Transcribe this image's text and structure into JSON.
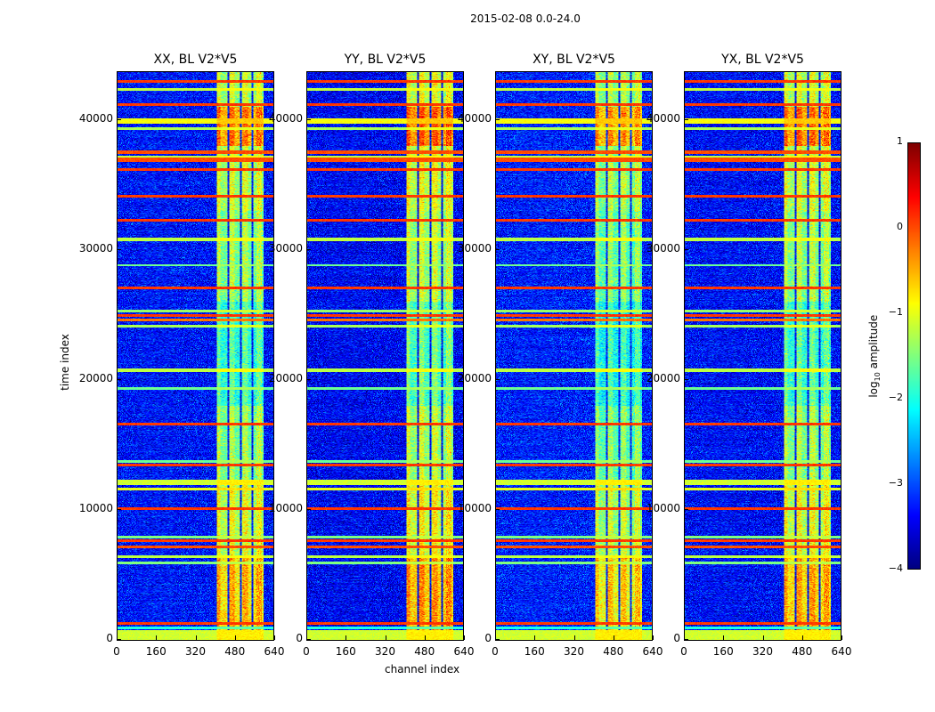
{
  "chart_data": {
    "type": "heatmap",
    "title": "2015-02-08 0.0-24.0",
    "xlabel": "channel index",
    "ylabel": "time index",
    "xlim": [
      0,
      640
    ],
    "ylim": [
      0,
      43700
    ],
    "xticks": [
      "0",
      "160",
      "320",
      "480",
      "640"
    ],
    "yticks": [
      "0",
      "10000",
      "20000",
      "30000",
      "40000"
    ],
    "panels": [
      {
        "title": "XX, BL V2*V5",
        "background": -3.3,
        "band_offset": 0.0
      },
      {
        "title": "YY, BL V2*V5",
        "background": -3.4,
        "band_offset": 0.15
      },
      {
        "title": "XY, BL V2*V5",
        "background": -3.25,
        "band_offset": -0.15
      },
      {
        "title": "YX, BL V2*V5",
        "background": -3.35,
        "band_offset": 0.05
      }
    ],
    "rfi_rows": [
      {
        "t": 42950,
        "w": 120,
        "level": 0.1
      },
      {
        "t": 42330,
        "w": 150,
        "level": -1.2
      },
      {
        "t": 41160,
        "w": 120,
        "level": 0.1
      },
      {
        "t": 39900,
        "w": 300,
        "level": -0.9
      },
      {
        "t": 39300,
        "w": 150,
        "level": -1.3
      },
      {
        "t": 37500,
        "w": 260,
        "level": 0.0
      },
      {
        "t": 37100,
        "w": 220,
        "level": -1.2
      },
      {
        "t": 36900,
        "w": 260,
        "level": 0.0
      },
      {
        "t": 36160,
        "w": 120,
        "level": 0.1
      },
      {
        "t": 34100,
        "w": 120,
        "level": 0.1
      },
      {
        "t": 32260,
        "w": 140,
        "level": 0.1
      },
      {
        "t": 30800,
        "w": 200,
        "level": -1.2
      },
      {
        "t": 28800,
        "w": 120,
        "level": -1.6
      },
      {
        "t": 27050,
        "w": 130,
        "level": 0.1
      },
      {
        "t": 25300,
        "w": 150,
        "level": -1.4
      },
      {
        "t": 24900,
        "w": 130,
        "level": 0.1
      },
      {
        "t": 24600,
        "w": 130,
        "level": -0.2
      },
      {
        "t": 24100,
        "w": 120,
        "level": -1.3
      },
      {
        "t": 20700,
        "w": 180,
        "level": -1.2
      },
      {
        "t": 19300,
        "w": 120,
        "level": -1.6
      },
      {
        "t": 16575,
        "w": 120,
        "level": 0.1
      },
      {
        "t": 13700,
        "w": 120,
        "level": -1.6
      },
      {
        "t": 13420,
        "w": 120,
        "level": 0.1
      },
      {
        "t": 12100,
        "w": 300,
        "level": -1.1
      },
      {
        "t": 11600,
        "w": 130,
        "level": -1.0
      },
      {
        "t": 10070,
        "w": 120,
        "level": 0.1
      },
      {
        "t": 7900,
        "w": 120,
        "level": -1.5
      },
      {
        "t": 7600,
        "w": 120,
        "level": 0.1
      },
      {
        "t": 7100,
        "w": 120,
        "level": 0.0
      },
      {
        "t": 6370,
        "w": 180,
        "level": -1.2
      },
      {
        "t": 5900,
        "w": 120,
        "level": -1.5
      },
      {
        "t": 1230,
        "w": 120,
        "level": 0.1
      },
      {
        "t": 900,
        "w": 150,
        "level": -2.0
      },
      {
        "t": 350,
        "w": 700,
        "level": -1.1
      }
    ],
    "band": {
      "channels": [
        405,
        600
      ],
      "gaps": [
        455,
        503,
        550
      ],
      "segments": [
        {
          "t0": 0,
          "t1": 6500,
          "level": -0.8
        },
        {
          "t0": 6500,
          "t1": 12300,
          "level": -1.3
        },
        {
          "t0": 12300,
          "t1": 18000,
          "level": -1.6
        },
        {
          "t0": 18000,
          "t1": 26000,
          "level": -2.0
        },
        {
          "t0": 26000,
          "t1": 33000,
          "level": -1.6
        },
        {
          "t0": 33000,
          "t1": 38000,
          "level": -1.4
        },
        {
          "t0": 38000,
          "t1": 41000,
          "level": -0.5
        },
        {
          "t0": 41000,
          "t1": 43700,
          "level": -1.4
        }
      ]
    },
    "colorbar": {
      "label_prefix": "log",
      "label_sub": "10",
      "label_suffix": " amplitude",
      "range": [
        -4,
        1
      ],
      "ticks": [
        "1",
        "0",
        "−1",
        "−2",
        "−3",
        "−4"
      ],
      "colormap": "jet"
    }
  }
}
